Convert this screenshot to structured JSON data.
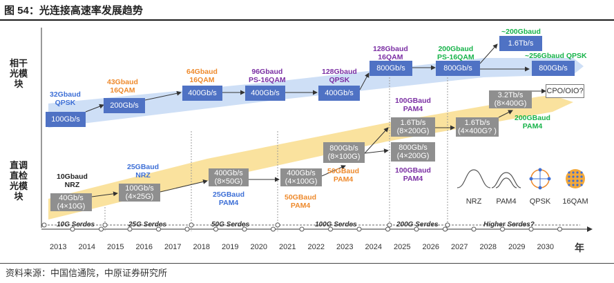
{
  "title": "图 54：光连接高速率发展趋势",
  "source": "资料来源：中国信通院，中原证券研究所",
  "row_labels": {
    "module": "相干光模块",
    "direct": "直调直检光模块"
  },
  "coherent": {
    "boxes": [
      "100Gb/s",
      "200Gb/s",
      "400Gb/s",
      "400Gb/s",
      "400Gb/s",
      "800Gb/s",
      "800Gb/s",
      "1.6Tb/s",
      "800Gb/s"
    ],
    "labels": [
      {
        "text": "32Gbaud\nQPSK",
        "color": "blue"
      },
      {
        "text": "43Gbaud\n16QAM",
        "color": "orange"
      },
      {
        "text": "64Gbaud\n16QAM",
        "color": "orange"
      },
      {
        "text": "96Gbaud\nPS-16QAM",
        "color": "purple"
      },
      {
        "text": "128Gbaud\nQPSK",
        "color": "purple"
      },
      {
        "text": "128Gbaud\n16QAM",
        "color": "purple"
      },
      {
        "text": "200Gbaud\nPS-16QAM",
        "color": "green"
      },
      {
        "text": "~200Gbaud",
        "color": "green"
      },
      {
        "text": "~256Gbaud QPSK",
        "color": "green"
      }
    ]
  },
  "direct": {
    "boxes": [
      "40Gb/s\n(4×10G)",
      "100Gb/s\n(4×25G)",
      "400Gb/s\n(8×50G)",
      "400Gb/s\n(4×100G)",
      "800Gb/s\n(8×100G)",
      "1.6Tb/s\n(8×200G)",
      "800Gb/s\n(4×200G)",
      "1.6Tb/s\n(4×400G? )",
      "3.2Tb/s\n(8×400G)",
      "CPO/OIO?"
    ],
    "labels": [
      {
        "text": "10Gbaud\nNRZ",
        "color": "dark"
      },
      {
        "text": "25GBaud\nNRZ",
        "color": "blue"
      },
      {
        "text": "25GBaud\nPAM4",
        "color": "blue"
      },
      {
        "text": "50GBaud\nPAM4",
        "color": "orange"
      },
      {
        "text": "50GBaud\nPAM4",
        "color": "orange"
      },
      {
        "text": "100GBaud\nPAM4",
        "color": "purple"
      },
      {
        "text": "100GBaud\nPAM4",
        "color": "purple"
      },
      {
        "text": "200GBaud\nPAM4",
        "color": "green"
      }
    ]
  },
  "serdes": [
    "10G Serdes",
    "25G Serdes",
    "50G Serdes",
    "100G Serdes",
    "200G Serdes",
    "Higher Serdes?"
  ],
  "years": [
    "2013",
    "2014",
    "2015",
    "2016",
    "2017",
    "2018",
    "2019",
    "2020",
    "2021",
    "2022",
    "2023",
    "2024",
    "2025",
    "2026",
    "2027",
    "2028",
    "2029",
    "2030",
    "年"
  ],
  "modulation_icons": [
    "NRZ",
    "PAM4",
    "QPSK",
    "16QAM"
  ],
  "colors": {
    "blue_box": "#4f72c4",
    "gray_box": "#8f8f8f",
    "blue_arrow": "#bcd3f2",
    "yellow_arrow": "#f8dc8a"
  }
}
